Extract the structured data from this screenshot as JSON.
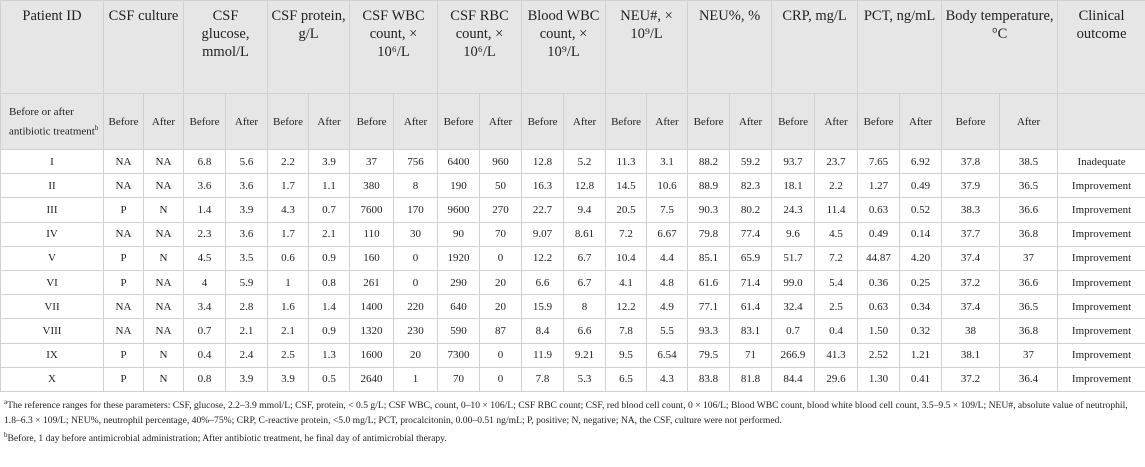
{
  "header": {
    "columns": [
      "Patient ID",
      "CSF culture",
      "CSF glucose, mmol/L",
      "CSF protein, g/L",
      "CSF WBC count, × 10⁶/L",
      "CSF RBC count, × 10⁶/L",
      "Blood WBC count, × 10⁹/L",
      "NEU#, × 10⁹/L",
      "NEU%, %",
      "CRP, mg/L",
      "PCT, ng/mL",
      "Body temperature, °C",
      "Clinical outcome"
    ]
  },
  "subheader": {
    "label": "Before or after antibiotic treatment",
    "marker": "b",
    "phases": [
      "Before",
      "After",
      "Before",
      "After",
      "Before",
      "After",
      "Before",
      "After",
      "Before",
      "After",
      "Before",
      "After",
      "Before",
      "After",
      "Before",
      "After",
      "Before",
      "After",
      "Before",
      "After",
      "Before",
      "After"
    ]
  },
  "table": {
    "rows": [
      [
        "I",
        "NA",
        "NA",
        "6.8",
        "5.6",
        "2.2",
        "3.9",
        "37",
        "756",
        "6400",
        "960",
        "12.8",
        "5.2",
        "11.3",
        "3.1",
        "88.2",
        "59.2",
        "93.7",
        "23.7",
        "7.65",
        "6.92",
        "37.8",
        "38.5",
        "Inadequate"
      ],
      [
        "II",
        "NA",
        "NA",
        "3.6",
        "3.6",
        "1.7",
        "1.1",
        "380",
        "8",
        "190",
        "50",
        "16.3",
        "12.8",
        "14.5",
        "10.6",
        "88.9",
        "82.3",
        "18.1",
        "2.2",
        "1.27",
        "0.49",
        "37.9",
        "36.5",
        "Improvement"
      ],
      [
        "III",
        "P",
        "N",
        "1.4",
        "3.9",
        "4.3",
        "0.7",
        "7600",
        "170",
        "9600",
        "270",
        "22.7",
        "9.4",
        "20.5",
        "7.5",
        "90.3",
        "80.2",
        "24.3",
        "11.4",
        "0.63",
        "0.52",
        "38.3",
        "36.6",
        "Improvement"
      ],
      [
        "IV",
        "NA",
        "NA",
        "2.3",
        "3.6",
        "1.7",
        "2.1",
        "110",
        "30",
        "90",
        "70",
        "9.07",
        "8.61",
        "7.2",
        "6.67",
        "79.8",
        "77.4",
        "9.6",
        "4.5",
        "0.49",
        "0.14",
        "37.7",
        "36.8",
        "Improvement"
      ],
      [
        "V",
        "P",
        "N",
        "4.5",
        "3.5",
        "0.6",
        "0.9",
        "160",
        "0",
        "1920",
        "0",
        "12.2",
        "6.7",
        "10.4",
        "4.4",
        "85.1",
        "65.9",
        "51.7",
        "7.2",
        "44.87",
        "4.20",
        "37.4",
        "37",
        "Improvement"
      ],
      [
        "VI",
        "P",
        "NA",
        "4",
        "5.9",
        "1",
        "0.8",
        "261",
        "0",
        "290",
        "20",
        "6.6",
        "6.7",
        "4.1",
        "4.8",
        "61.6",
        "71.4",
        "99.0",
        "5.4",
        "0.36",
        "0.25",
        "37.2",
        "36.6",
        "Improvement"
      ],
      [
        "VII",
        "NA",
        "NA",
        "3.4",
        "2.8",
        "1.6",
        "1.4",
        "1400",
        "220",
        "640",
        "20",
        "15.9",
        "8",
        "12.2",
        "4.9",
        "77.1",
        "61.4",
        "32.4",
        "2.5",
        "0.63",
        "0.34",
        "37.4",
        "36.5",
        "Improvement"
      ],
      [
        "VIII",
        "NA",
        "NA",
        "0.7",
        "2.1",
        "2.1",
        "0.9",
        "1320",
        "230",
        "590",
        "87",
        "8.4",
        "6.6",
        "7.8",
        "5.5",
        "93.3",
        "83.1",
        "0.7",
        "0.4",
        "1.50",
        "0.32",
        "38",
        "36.8",
        "Improvement"
      ],
      [
        "IX",
        "P",
        "N",
        "0.4",
        "2.4",
        "2.5",
        "1.3",
        "1600",
        "20",
        "7300",
        "0",
        "11.9",
        "9.21",
        "9.5",
        "6.54",
        "79.5",
        "71",
        "266.9",
        "41.3",
        "2.52",
        "1.21",
        "38.1",
        "37",
        "Improvement"
      ],
      [
        "X",
        "P",
        "N",
        "0.8",
        "3.9",
        "3.9",
        "0.5",
        "2640",
        "1",
        "70",
        "0",
        "7.8",
        "5.3",
        "6.5",
        "4.3",
        "83.8",
        "81.8",
        "84.4",
        "29.6",
        "1.30",
        "0.41",
        "37.2",
        "36.4",
        "Improvement"
      ]
    ]
  },
  "footnotes": [
    {
      "marker": "a",
      "text": "The reference ranges for these parameters: CSF, glucose, 2.2–3.9 mmol/L; CSF, protein, < 0.5 g/L; CSF WBC, count, 0–10 × 106/L; CSF RBC count; CSF, red blood cell count, 0 × 106/L; Blood WBC count, blood white blood cell count, 3.5–9.5 × 109/L; NEU#, absolute value of neutrophil, 1.8–6.3 × 109/L; NEU%, neutrophil percentage, 40%–75%; CRP, C-reactive protein, <5.0 mg/L; PCT, procalcitonin, 0.00–0.51 ng/mL; P, positive; N, negative; NA, the CSF, culture were not performed."
    },
    {
      "marker": "b",
      "text": "Before, 1 day before antimicrobial administration; After antibiotic treatment, he final day of antimicrobial therapy."
    }
  ]
}
